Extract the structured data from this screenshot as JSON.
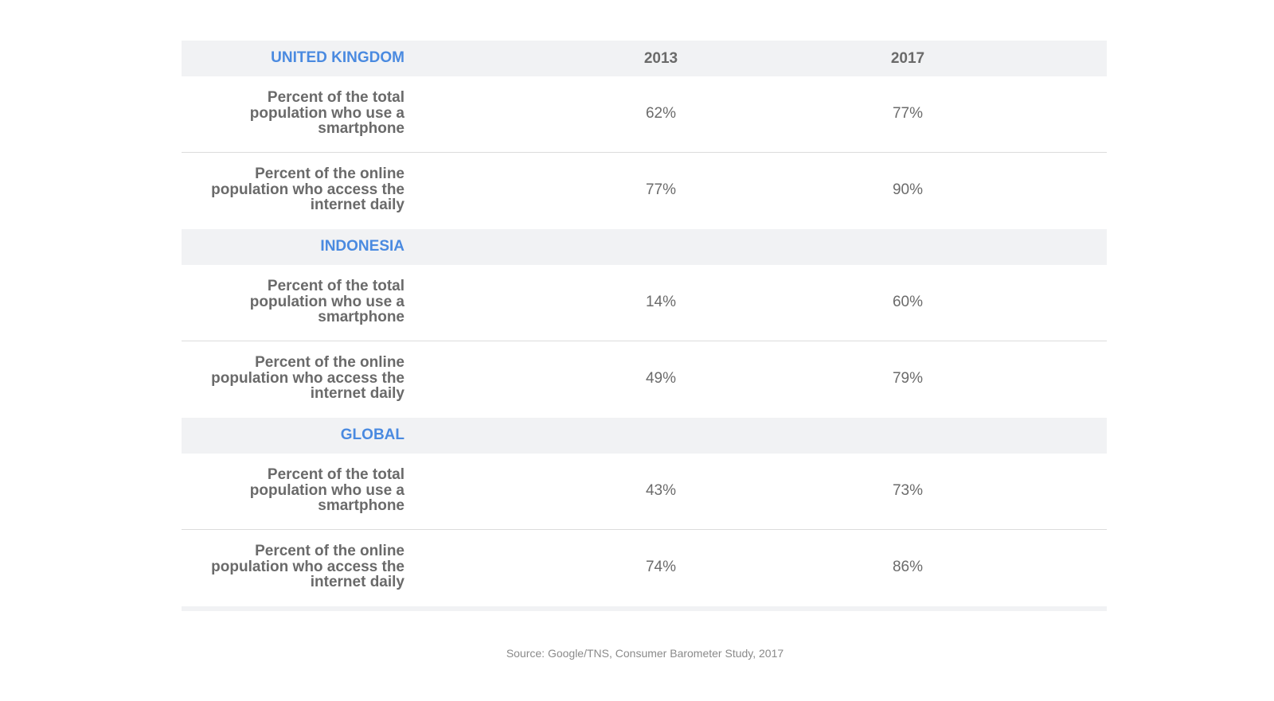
{
  "header": {
    "region": "UNITED KINGDOM",
    "year_1": "2013",
    "year_2": "2017"
  },
  "sections": [
    {
      "region": "UNITED KINGDOM",
      "rows": [
        {
          "label": "Percent of the total population who use a smartphone",
          "v2013": "62%",
          "v2017": "77%"
        },
        {
          "label": "Percent of the online population who access the internet daily",
          "v2013": "77%",
          "v2017": "90%"
        }
      ]
    },
    {
      "region": "INDONESIA",
      "rows": [
        {
          "label": "Percent of the total population who use a smartphone",
          "v2013": "14%",
          "v2017": "60%"
        },
        {
          "label": "Percent of the online population who access the internet daily",
          "v2013": "49%",
          "v2017": "79%"
        }
      ]
    },
    {
      "region": "GLOBAL",
      "rows": [
        {
          "label": "Percent of the total population who use a smartphone",
          "v2013": "43%",
          "v2017": "73%"
        },
        {
          "label": "Percent of the online population who access the internet daily",
          "v2013": "74%",
          "v2017": "86%"
        }
      ]
    }
  ],
  "source": "Source: Google/TNS, Consumer Barometer Study, 2017",
  "colors": {
    "region_accent": "#4a8ae0",
    "section_bg": "#f1f2f4",
    "text": "#6b6b6b"
  },
  "chart_data": {
    "type": "table",
    "columns": [
      "2013",
      "2017"
    ],
    "groups": [
      {
        "region": "UNITED KINGDOM",
        "rows": [
          {
            "metric": "Percent of the total population who use a smartphone",
            "values": [
              62,
              77
            ]
          },
          {
            "metric": "Percent of the online population who access the internet daily",
            "values": [
              77,
              90
            ]
          }
        ]
      },
      {
        "region": "INDONESIA",
        "rows": [
          {
            "metric": "Percent of the total population who use a smartphone",
            "values": [
              14,
              60
            ]
          },
          {
            "metric": "Percent of the online population who access the internet daily",
            "values": [
              49,
              79
            ]
          }
        ]
      },
      {
        "region": "GLOBAL",
        "rows": [
          {
            "metric": "Percent of the total population who use a smartphone",
            "values": [
              43,
              73
            ]
          },
          {
            "metric": "Percent of the online population who access the internet daily",
            "values": [
              74,
              86
            ]
          }
        ]
      }
    ],
    "unit": "%"
  }
}
